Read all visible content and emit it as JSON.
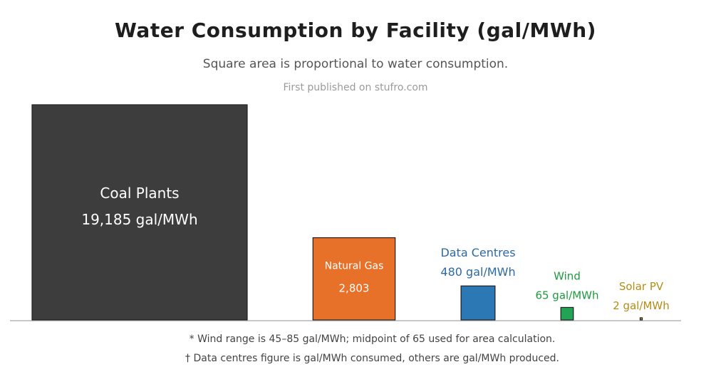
{
  "title": "Water Consumption by Facility (gal/MWh)",
  "subtitle": "Square area is proportional to water consumption.",
  "credit": "First published on stufro.com",
  "footnotes": [
    "* Wind range is 45–85 gal/MWh; midpoint of 65 used for area calculation.",
    "† Data centres figure is gal/MWh consumed, others are gal/MWh produced."
  ],
  "chart_data": {
    "type": "bar",
    "title": "Water Consumption by Facility (gal/MWh)",
    "subtitle": "Square area is proportional to water consumption.",
    "encoding": "square area",
    "unit": "gal/MWh",
    "categories": [
      "Coal Plants",
      "Natural Gas",
      "Data Centres",
      "Wind",
      "Solar PV"
    ],
    "values": [
      19185,
      2803,
      480,
      65,
      2
    ],
    "value_labels": [
      "19,185 gal/MWh",
      "2,803",
      "480 gal/MWh",
      "65 gal/MWh",
      "2 gal/MWh"
    ],
    "colors": [
      "#3d3d3d",
      "#e8712a",
      "#2b78b5",
      "#23a455",
      "#c9a227"
    ],
    "label_colors": [
      "#ffffff",
      "#ffffff",
      "#2b6aa3",
      "#1f9a3f",
      "#b58d14"
    ],
    "label_inside": [
      true,
      true,
      false,
      false,
      false
    ],
    "grid": false,
    "legend": "none"
  }
}
